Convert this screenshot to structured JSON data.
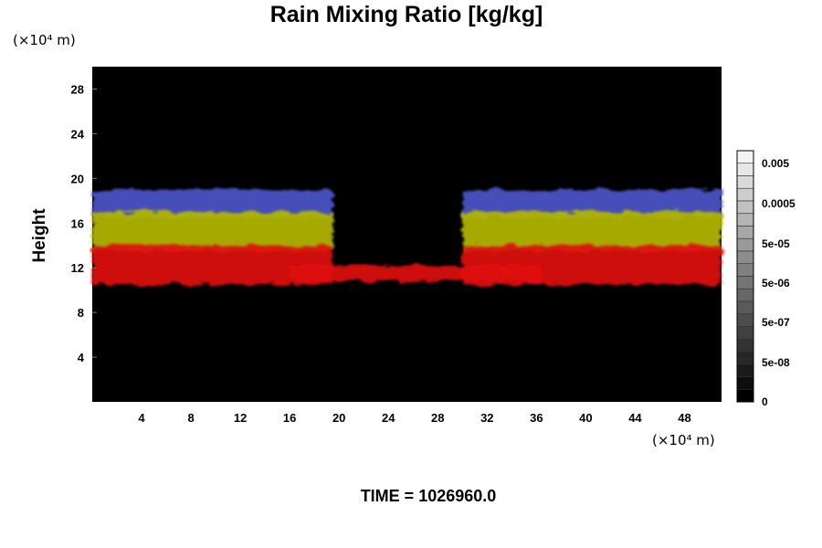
{
  "chart_data": {
    "type": "heatmap",
    "title": "Rain Mixing Ratio [kg/kg]",
    "ylabel": "Height",
    "x_unit": "(×10⁴ m)",
    "y_unit": "(×10⁴ m)",
    "xlim": [
      0,
      51
    ],
    "ylim": [
      0,
      30
    ],
    "x_ticks": [
      4,
      8,
      12,
      16,
      20,
      24,
      28,
      32,
      36,
      40,
      44,
      48
    ],
    "y_ticks": [
      4,
      8,
      12,
      16,
      20,
      24,
      28
    ],
    "colorbar": {
      "ticks": [
        "0.005",
        "0.0005",
        "5e-05",
        "5e-06",
        "5e-07",
        "5e-08",
        "0"
      ],
      "levels": 20,
      "min_color": "#000000",
      "max_color": "#f4f4f4"
    },
    "layers": [
      {
        "color": "#4d55c9",
        "bottom_height": 16.5,
        "top_height": 19.0
      },
      {
        "color": "#b4b800",
        "bottom_height": 13.5,
        "top_height": 17.0
      },
      {
        "color": "#e01010",
        "bottom_height": 10.5,
        "top_height": 14.0
      }
    ],
    "background_color": "#000000",
    "time_label": "TIME = 1026960.0"
  }
}
